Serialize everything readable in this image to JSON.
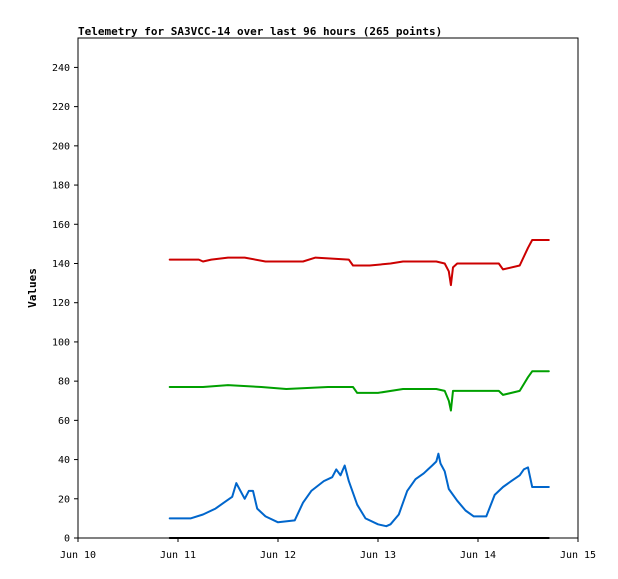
{
  "chart_data": {
    "type": "line",
    "title": "Telemetry for SA3VCC-14 over last 96 hours (265 points)",
    "xlabel": "",
    "ylabel": "Values",
    "xlim": [
      "Jun 10 00:00",
      "Jun 15 00:00"
    ],
    "ylim": [
      0,
      255
    ],
    "x_ticks": [
      "Jun 10",
      "Jun 11",
      "Jun 12",
      "Jun 13",
      "Jun 14",
      "Jun 15"
    ],
    "y_ticks": [
      0,
      20,
      40,
      60,
      80,
      100,
      120,
      140,
      160,
      180,
      200,
      220,
      240
    ],
    "grid": false,
    "legend": "none",
    "series": [
      {
        "color": "#cc0000",
        "points": [
          [
            "Jun 10 22:00",
            142
          ],
          [
            "Jun 11 05:00",
            142
          ],
          [
            "Jun 11 06:00",
            141
          ],
          [
            "Jun 11 08:00",
            142
          ],
          [
            "Jun 11 12:00",
            143
          ],
          [
            "Jun 11 16:00",
            143
          ],
          [
            "Jun 11 21:00",
            141
          ],
          [
            "Jun 12 06:00",
            141
          ],
          [
            "Jun 12 09:00",
            143
          ],
          [
            "Jun 12 17:00",
            142
          ],
          [
            "Jun 12 18:00",
            139
          ],
          [
            "Jun 12 22:00",
            139
          ],
          [
            "Jun 13 03:00",
            140
          ],
          [
            "Jun 13 06:00",
            141
          ],
          [
            "Jun 13 14:00",
            141
          ],
          [
            "Jun 13 16:00",
            140
          ],
          [
            "Jun 13 17:00",
            136
          ],
          [
            "Jun 13 17:30",
            129
          ],
          [
            "Jun 13 18:00",
            138
          ],
          [
            "Jun 13 19:00",
            140
          ],
          [
            "Jun 14 02:00",
            140
          ],
          [
            "Jun 14 05:00",
            140
          ],
          [
            "Jun 14 06:00",
            137
          ],
          [
            "Jun 14 10:00",
            139
          ],
          [
            "Jun 14 12:00",
            148
          ],
          [
            "Jun 14 13:00",
            152
          ],
          [
            "Jun 14 17:00",
            152
          ]
        ]
      },
      {
        "color": "#00a000",
        "points": [
          [
            "Jun 10 22:00",
            77
          ],
          [
            "Jun 11 06:00",
            77
          ],
          [
            "Jun 11 12:00",
            78
          ],
          [
            "Jun 11 20:00",
            77
          ],
          [
            "Jun 12 02:00",
            76
          ],
          [
            "Jun 12 12:00",
            77
          ],
          [
            "Jun 12 18:00",
            77
          ],
          [
            "Jun 12 19:00",
            74
          ],
          [
            "Jun 13 00:00",
            74
          ],
          [
            "Jun 13 06:00",
            76
          ],
          [
            "Jun 13 14:00",
            76
          ],
          [
            "Jun 13 16:00",
            75
          ],
          [
            "Jun 13 17:00",
            70
          ],
          [
            "Jun 13 17:30",
            65
          ],
          [
            "Jun 13 18:00",
            75
          ],
          [
            "Jun 14 05:00",
            75
          ],
          [
            "Jun 14 06:00",
            73
          ],
          [
            "Jun 14 10:00",
            75
          ],
          [
            "Jun 14 12:00",
            82
          ],
          [
            "Jun 14 13:00",
            85
          ],
          [
            "Jun 14 17:00",
            85
          ]
        ]
      },
      {
        "color": "#0066cc",
        "points": [
          [
            "Jun 10 22:00",
            10
          ],
          [
            "Jun 11 03:00",
            10
          ],
          [
            "Jun 11 06:00",
            12
          ],
          [
            "Jun 11 09:00",
            15
          ],
          [
            "Jun 11 11:00",
            18
          ],
          [
            "Jun 11 13:00",
            21
          ],
          [
            "Jun 11 14:00",
            28
          ],
          [
            "Jun 11 16:00",
            20
          ],
          [
            "Jun 11 17:00",
            24
          ],
          [
            "Jun 11 18:00",
            24
          ],
          [
            "Jun 11 19:00",
            15
          ],
          [
            "Jun 11 21:00",
            11
          ],
          [
            "Jun 12 00:00",
            8
          ],
          [
            "Jun 12 04:00",
            9
          ],
          [
            "Jun 12 06:00",
            18
          ],
          [
            "Jun 12 08:00",
            24
          ],
          [
            "Jun 12 11:00",
            29
          ],
          [
            "Jun 12 13:00",
            31
          ],
          [
            "Jun 12 14:00",
            35
          ],
          [
            "Jun 12 15:00",
            32
          ],
          [
            "Jun 12 16:00",
            37
          ],
          [
            "Jun 12 17:00",
            29
          ],
          [
            "Jun 12 19:00",
            17
          ],
          [
            "Jun 12 21:00",
            10
          ],
          [
            "Jun 13 00:00",
            7
          ],
          [
            "Jun 13 02:00",
            6
          ],
          [
            "Jun 13 03:00",
            7
          ],
          [
            "Jun 13 05:00",
            12
          ],
          [
            "Jun 13 07:00",
            24
          ],
          [
            "Jun 13 09:00",
            30
          ],
          [
            "Jun 13 11:00",
            33
          ],
          [
            "Jun 13 12:00",
            35
          ],
          [
            "Jun 13 13:00",
            37
          ],
          [
            "Jun 13 14:00",
            39
          ],
          [
            "Jun 13 14:30",
            43
          ],
          [
            "Jun 13 15:00",
            38
          ],
          [
            "Jun 13 16:00",
            34
          ],
          [
            "Jun 13 17:00",
            25
          ],
          [
            "Jun 13 19:00",
            19
          ],
          [
            "Jun 13 21:00",
            14
          ],
          [
            "Jun 13 23:00",
            11
          ],
          [
            "Jun 14 02:00",
            11
          ],
          [
            "Jun 14 04:00",
            22
          ],
          [
            "Jun 14 06:00",
            26
          ],
          [
            "Jun 14 08:00",
            29
          ],
          [
            "Jun 14 10:00",
            32
          ],
          [
            "Jun 14 11:00",
            35
          ],
          [
            "Jun 14 12:00",
            36
          ],
          [
            "Jun 14 13:00",
            26
          ],
          [
            "Jun 14 17:00",
            26
          ]
        ]
      },
      {
        "color": "#000000",
        "points": [
          [
            "Jun 10 22:00",
            0
          ],
          [
            "Jun 14 17:00",
            0
          ]
        ]
      }
    ]
  }
}
